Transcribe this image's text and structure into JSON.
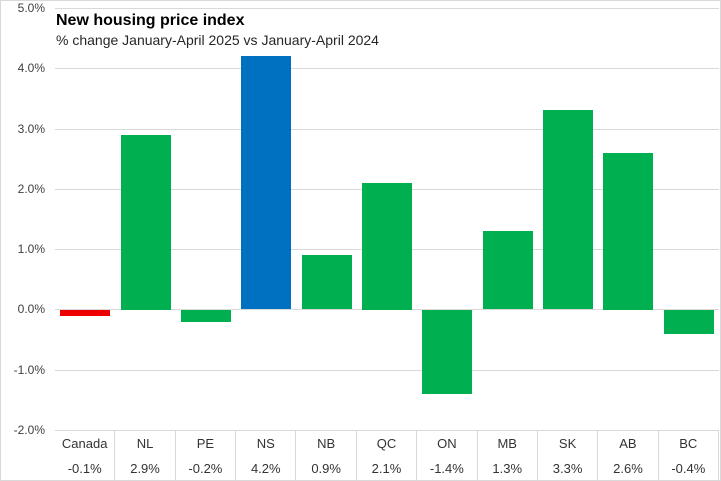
{
  "title": "New housing price index",
  "subtitle": "% change January-April 2025 vs January-April 2024",
  "chart_data": {
    "type": "bar",
    "title": "New housing price index",
    "subtitle": "% change January-April 2025 vs January-April 2024",
    "xlabel": "",
    "ylabel": "",
    "categories": [
      "Canada",
      "NL",
      "PE",
      "NS",
      "NB",
      "QC",
      "ON",
      "MB",
      "SK",
      "AB",
      "BC"
    ],
    "values": [
      -0.1,
      2.9,
      -0.2,
      4.2,
      0.9,
      2.1,
      -1.4,
      1.3,
      3.3,
      2.6,
      -0.4
    ],
    "value_labels": [
      "-0.1%",
      "2.9%",
      "-0.2%",
      "4.2%",
      "0.9%",
      "2.1%",
      "-1.4%",
      "1.3%",
      "3.3%",
      "2.6%",
      "-0.4%"
    ],
    "bar_colors": [
      "#ee0000",
      "#00b050",
      "#00b050",
      "#0070c0",
      "#00b050",
      "#00b050",
      "#00b050",
      "#00b050",
      "#00b050",
      "#00b050",
      "#00b050"
    ],
    "y_ticks": [
      "5.0%",
      "4.0%",
      "3.0%",
      "2.0%",
      "1.0%",
      "0.0%",
      "-1.0%",
      "-2.0%"
    ],
    "y_tick_values": [
      5,
      4,
      3,
      2,
      1,
      0,
      -1,
      -2
    ],
    "ylim": [
      -2,
      5
    ],
    "grid": true,
    "legend": "none",
    "data_table_below_axis": true,
    "colors": {
      "canada_highlight": "#ee0000",
      "province_default": "#00b050",
      "ns_highlight": "#0070c0",
      "gridline": "#d9d9d9"
    }
  }
}
